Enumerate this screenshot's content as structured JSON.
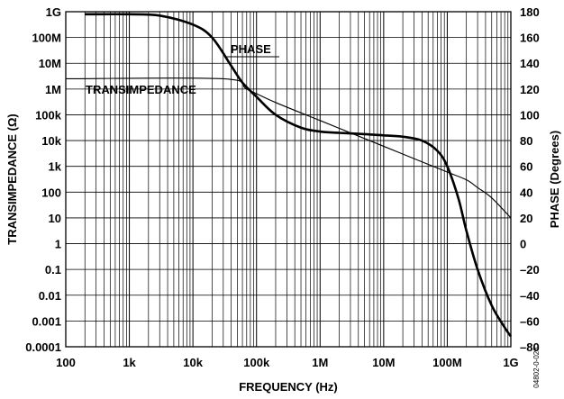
{
  "chart_data": {
    "type": "line",
    "title": "",
    "xlabel": "FREQUENCY (Hz)",
    "ylabel_left": "TRANSIMPEDANCE (Ω)",
    "ylabel_right": "PHASE (Degrees)",
    "figure_id": "04802-0-028",
    "x_scale": "log",
    "y_left_scale": "log",
    "y_right_scale": "linear",
    "xlim": [
      100,
      1000000000
    ],
    "ylim_left": [
      0.0001,
      1000000000
    ],
    "ylim_right": [
      -80,
      180
    ],
    "grid": true,
    "x_ticks": [
      {
        "value": 100,
        "label": "100"
      },
      {
        "value": 1000,
        "label": "1k"
      },
      {
        "value": 10000,
        "label": "10k"
      },
      {
        "value": 100000,
        "label": "100k"
      },
      {
        "value": 1000000,
        "label": "1M"
      },
      {
        "value": 10000000,
        "label": "10M"
      },
      {
        "value": 100000000,
        "label": "100M"
      },
      {
        "value": 1000000000,
        "label": "1G"
      }
    ],
    "y_left_ticks": [
      {
        "value": 1000000000,
        "label": "1G"
      },
      {
        "value": 100000000,
        "label": "100M"
      },
      {
        "value": 10000000,
        "label": "10M"
      },
      {
        "value": 1000000,
        "label": "1M"
      },
      {
        "value": 100000,
        "label": "100k"
      },
      {
        "value": 10000,
        "label": "10k"
      },
      {
        "value": 1000,
        "label": "1k"
      },
      {
        "value": 100,
        "label": "100"
      },
      {
        "value": 10,
        "label": "10"
      },
      {
        "value": 1,
        "label": "1"
      },
      {
        "value": 0.1,
        "label": "0.1"
      },
      {
        "value": 0.01,
        "label": "0.01"
      },
      {
        "value": 0.001,
        "label": "0.001"
      },
      {
        "value": 0.0001,
        "label": "0.0001"
      }
    ],
    "y_right_ticks": [
      {
        "value": 180,
        "label": "180"
      },
      {
        "value": 160,
        "label": "160"
      },
      {
        "value": 140,
        "label": "140"
      },
      {
        "value": 120,
        "label": "120"
      },
      {
        "value": 100,
        "label": "100"
      },
      {
        "value": 80,
        "label": "80"
      },
      {
        "value": 60,
        "label": "60"
      },
      {
        "value": 40,
        "label": "40"
      },
      {
        "value": 20,
        "label": "20"
      },
      {
        "value": 0,
        "label": "0"
      },
      {
        "value": -20,
        "label": "–20"
      },
      {
        "value": -40,
        "label": "–40"
      },
      {
        "value": -60,
        "label": "–60"
      },
      {
        "value": -80,
        "label": "–80"
      }
    ],
    "series": [
      {
        "name": "PHASE",
        "axis": "right",
        "line_style": "thick",
        "x": [
          200,
          1000,
          3000,
          10000,
          20000,
          40000,
          60000,
          100000,
          200000,
          500000,
          1000000,
          2000000,
          5000000,
          10000000,
          20000000,
          40000000,
          70000000,
          100000000,
          150000000,
          200000000,
          300000000,
          500000000,
          800000000,
          1000000000
        ],
        "values": [
          178,
          178,
          177,
          170,
          160,
          138,
          125,
          114,
          100,
          90,
          87,
          86,
          85,
          84,
          83,
          80,
          72,
          60,
          35,
          10,
          -20,
          -48,
          -65,
          -72
        ]
      },
      {
        "name": "TRANSIMPEDANCE",
        "axis": "left",
        "line_style": "thin",
        "x": [
          100,
          30000,
          70000,
          200000,
          1000000,
          3000000,
          10000000,
          30000000,
          100000000,
          200000000,
          300000000,
          500000000,
          1000000000
        ],
        "values": [
          2500000,
          2500000,
          1000000,
          300000,
          60000,
          20000,
          6000,
          2000,
          600,
          300,
          150,
          60,
          10
        ]
      }
    ]
  }
}
